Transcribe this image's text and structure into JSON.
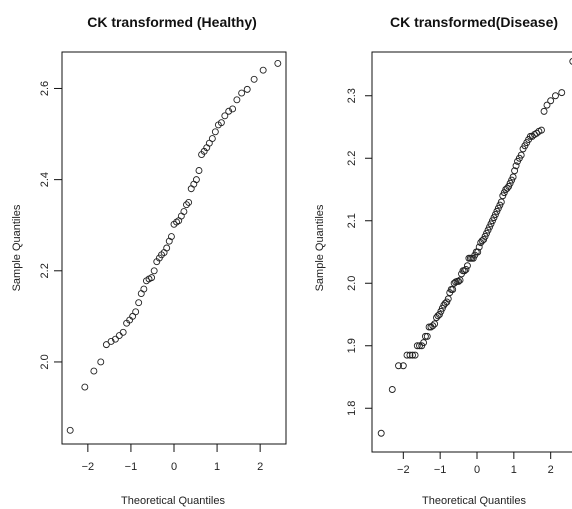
{
  "chart_data": [
    {
      "type": "scatter",
      "title": "CK transformed (Healthy)",
      "xlabel": "Theoretical Quantiles",
      "ylabel": "Sample Quantiles",
      "xlim": [
        -2.6,
        2.6
      ],
      "ylim": [
        1.82,
        2.68
      ],
      "xticks": [
        -2,
        -1,
        0,
        1,
        2
      ],
      "yticks": [
        2.0,
        2.2,
        2.4,
        2.6
      ],
      "ytick_labels": [
        "2.0",
        "2.2",
        "2.4",
        "2.6"
      ],
      "grid": false,
      "points": [
        [
          -2.41,
          1.85
        ],
        [
          -2.07,
          1.945
        ],
        [
          -1.86,
          1.98
        ],
        [
          -1.7,
          2.0
        ],
        [
          -1.57,
          2.038
        ],
        [
          -1.46,
          2.045
        ],
        [
          -1.36,
          2.05
        ],
        [
          -1.27,
          2.058
        ],
        [
          -1.18,
          2.065
        ],
        [
          -1.1,
          2.085
        ],
        [
          -1.03,
          2.092
        ],
        [
          -0.96,
          2.1
        ],
        [
          -0.89,
          2.11
        ],
        [
          -0.82,
          2.13
        ],
        [
          -0.76,
          2.15
        ],
        [
          -0.7,
          2.16
        ],
        [
          -0.64,
          2.178
        ],
        [
          -0.58,
          2.182
        ],
        [
          -0.52,
          2.185
        ],
        [
          -0.46,
          2.2
        ],
        [
          -0.4,
          2.22
        ],
        [
          -0.34,
          2.228
        ],
        [
          -0.29,
          2.235
        ],
        [
          -0.23,
          2.24
        ],
        [
          -0.17,
          2.25
        ],
        [
          -0.11,
          2.265
        ],
        [
          -0.06,
          2.275
        ],
        [
          0.0,
          2.302
        ],
        [
          0.06,
          2.307
        ],
        [
          0.11,
          2.31
        ],
        [
          0.17,
          2.32
        ],
        [
          0.23,
          2.33
        ],
        [
          0.29,
          2.345
        ],
        [
          0.34,
          2.35
        ],
        [
          0.4,
          2.38
        ],
        [
          0.46,
          2.39
        ],
        [
          0.52,
          2.4
        ],
        [
          0.58,
          2.42
        ],
        [
          0.64,
          2.455
        ],
        [
          0.7,
          2.462
        ],
        [
          0.76,
          2.47
        ],
        [
          0.82,
          2.48
        ],
        [
          0.89,
          2.49
        ],
        [
          0.96,
          2.505
        ],
        [
          1.03,
          2.52
        ],
        [
          1.1,
          2.525
        ],
        [
          1.18,
          2.54
        ],
        [
          1.27,
          2.55
        ],
        [
          1.36,
          2.555
        ],
        [
          1.46,
          2.575
        ],
        [
          1.57,
          2.59
        ],
        [
          1.7,
          2.598
        ],
        [
          1.86,
          2.62
        ],
        [
          2.07,
          2.64
        ],
        [
          2.41,
          2.655
        ]
      ]
    },
    {
      "type": "scatter",
      "title": "CK transformed(Disease)",
      "xlabel": "Theoretical Quantiles",
      "ylabel": "Sample Quantiles",
      "xlim": [
        -2.85,
        2.85
      ],
      "ylim": [
        1.73,
        2.37
      ],
      "xticks": [
        -2,
        -1,
        0,
        1,
        2
      ],
      "yticks": [
        1.8,
        1.9,
        2.0,
        2.1,
        2.2,
        2.3
      ],
      "ytick_labels": [
        "1.8",
        "1.9",
        "2.0",
        "2.1",
        "2.2",
        "2.3"
      ],
      "grid": false,
      "points": [
        [
          -2.6,
          1.76
        ],
        [
          -2.3,
          1.83
        ],
        [
          -2.13,
          1.868
        ],
        [
          -2.0,
          1.868
        ],
        [
          -1.9,
          1.885
        ],
        [
          -1.82,
          1.885
        ],
        [
          -1.75,
          1.885
        ],
        [
          -1.68,
          1.885
        ],
        [
          -1.62,
          1.9
        ],
        [
          -1.56,
          1.9
        ],
        [
          -1.5,
          1.9
        ],
        [
          -1.45,
          1.905
        ],
        [
          -1.4,
          1.915
        ],
        [
          -1.35,
          1.915
        ],
        [
          -1.3,
          1.93
        ],
        [
          -1.25,
          1.93
        ],
        [
          -1.2,
          1.932
        ],
        [
          -1.15,
          1.935
        ],
        [
          -1.1,
          1.945
        ],
        [
          -1.06,
          1.948
        ],
        [
          -1.02,
          1.95
        ],
        [
          -0.98,
          1.955
        ],
        [
          -0.94,
          1.96
        ],
        [
          -0.9,
          1.965
        ],
        [
          -0.86,
          1.968
        ],
        [
          -0.82,
          1.97
        ],
        [
          -0.78,
          1.975
        ],
        [
          -0.74,
          1.985
        ],
        [
          -0.7,
          1.99
        ],
        [
          -0.66,
          1.99
        ],
        [
          -0.62,
          2.0
        ],
        [
          -0.58,
          2.002
        ],
        [
          -0.54,
          2.003
        ],
        [
          -0.5,
          2.003
        ],
        [
          -0.46,
          2.005
        ],
        [
          -0.42,
          2.015
        ],
        [
          -0.38,
          2.02
        ],
        [
          -0.34,
          2.02
        ],
        [
          -0.3,
          2.022
        ],
        [
          -0.26,
          2.028
        ],
        [
          -0.22,
          2.04
        ],
        [
          -0.18,
          2.04
        ],
        [
          -0.14,
          2.04
        ],
        [
          -0.1,
          2.04
        ],
        [
          -0.06,
          2.045
        ],
        [
          -0.02,
          2.05
        ],
        [
          0.02,
          2.05
        ],
        [
          0.06,
          2.058
        ],
        [
          0.1,
          2.065
        ],
        [
          0.14,
          2.068
        ],
        [
          0.18,
          2.07
        ],
        [
          0.22,
          2.075
        ],
        [
          0.26,
          2.08
        ],
        [
          0.3,
          2.085
        ],
        [
          0.34,
          2.09
        ],
        [
          0.38,
          2.095
        ],
        [
          0.42,
          2.1
        ],
        [
          0.46,
          2.105
        ],
        [
          0.5,
          2.11
        ],
        [
          0.54,
          2.115
        ],
        [
          0.58,
          2.12
        ],
        [
          0.62,
          2.125
        ],
        [
          0.66,
          2.13
        ],
        [
          0.7,
          2.14
        ],
        [
          0.74,
          2.145
        ],
        [
          0.78,
          2.15
        ],
        [
          0.82,
          2.152
        ],
        [
          0.86,
          2.155
        ],
        [
          0.9,
          2.16
        ],
        [
          0.94,
          2.165
        ],
        [
          0.98,
          2.17
        ],
        [
          1.02,
          2.18
        ],
        [
          1.06,
          2.188
        ],
        [
          1.1,
          2.195
        ],
        [
          1.15,
          2.2
        ],
        [
          1.2,
          2.205
        ],
        [
          1.25,
          2.215
        ],
        [
          1.3,
          2.22
        ],
        [
          1.35,
          2.225
        ],
        [
          1.4,
          2.23
        ],
        [
          1.45,
          2.235
        ],
        [
          1.5,
          2.235
        ],
        [
          1.56,
          2.238
        ],
        [
          1.62,
          2.24
        ],
        [
          1.68,
          2.243
        ],
        [
          1.75,
          2.245
        ],
        [
          1.82,
          2.275
        ],
        [
          1.9,
          2.285
        ],
        [
          2.0,
          2.292
        ],
        [
          2.13,
          2.3
        ],
        [
          2.3,
          2.305
        ],
        [
          2.6,
          2.355
        ]
      ]
    }
  ]
}
